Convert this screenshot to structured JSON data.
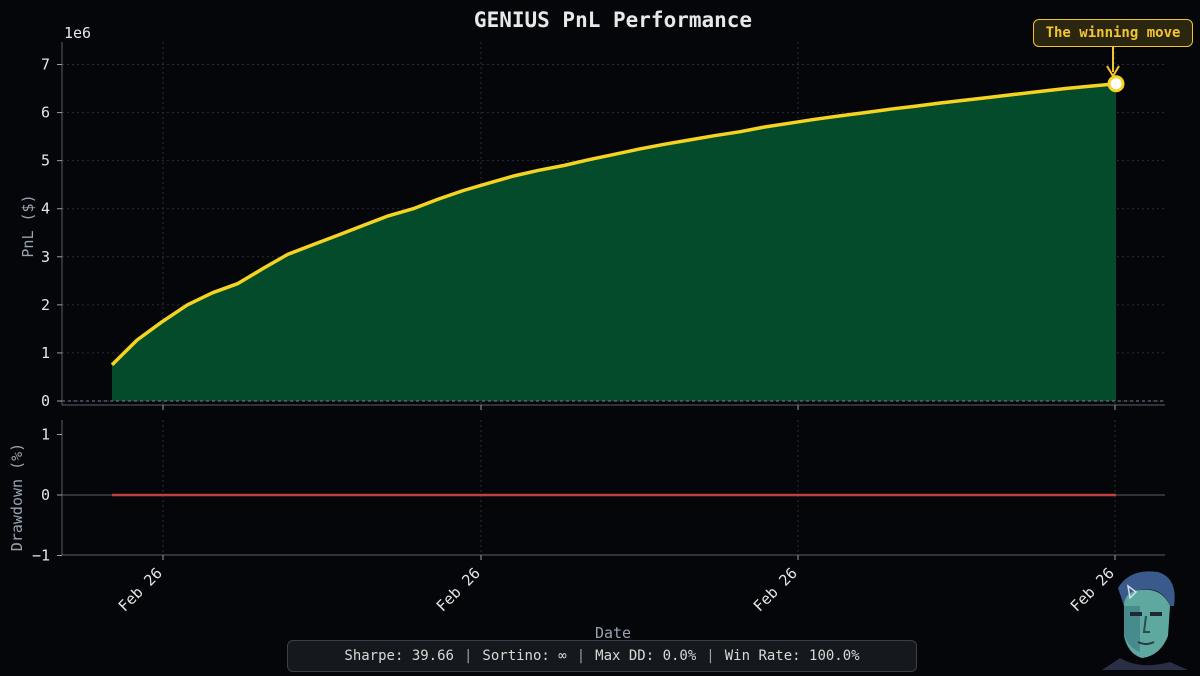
{
  "chart_data": [
    {
      "type": "area",
      "title": "GENIUS PnL Performance",
      "ylabel": "PnL ($)",
      "y_scale_label": "1e6",
      "ylim": [
        -0.08,
        7.4
      ],
      "yticks": [
        "0",
        "1",
        "2",
        "3",
        "4",
        "5",
        "6",
        "7"
      ],
      "x": [
        0,
        1,
        2,
        3,
        4,
        5,
        6,
        7,
        8,
        9,
        10,
        11,
        12,
        13,
        14,
        15,
        16,
        17,
        18,
        19,
        20,
        21,
        22,
        23,
        24,
        25,
        26,
        27,
        28,
        29,
        30,
        31,
        32,
        33,
        34,
        35,
        36,
        37,
        38,
        39,
        40
      ],
      "series": [
        {
          "values": [
            0.75,
            1.27,
            1.65,
            2.0,
            2.25,
            2.44,
            2.75,
            3.05,
            3.25,
            3.45,
            3.65,
            3.85,
            4.0,
            4.2,
            4.38,
            4.53,
            4.68,
            4.8,
            4.9,
            5.02,
            5.13,
            5.24,
            5.34,
            5.43,
            5.52,
            5.6,
            5.7,
            5.78,
            5.86,
            5.93,
            6.0,
            6.07,
            6.13,
            6.2,
            6.26,
            6.32,
            6.38,
            6.44,
            6.5,
            6.55,
            6.6
          ],
          "color": "#f5d320",
          "fill": "#034f2c"
        }
      ],
      "grid": true,
      "annotation": {
        "text": "The winning move",
        "point_index": 40,
        "color": "#f4c531"
      }
    },
    {
      "type": "line",
      "ylabel": "Drawdown (%)",
      "xlabel": "Date",
      "ylim": [
        -1,
        1
      ],
      "yticks": [
        "1",
        "0",
        "−1"
      ],
      "xticks": [
        "Feb 26",
        "Feb 26",
        "Feb 26",
        "Feb 26"
      ],
      "series": [
        {
          "values": [
            0,
            0
          ],
          "color": "#c0403c"
        }
      ],
      "grid": true
    }
  ],
  "stats": {
    "sharpe": "Sharpe: 39.66",
    "sortino": "Sortino: ∞",
    "max_dd": "Max DD: 0.0%",
    "win_rate": "Win Rate: 100.0%",
    "separator": "|"
  },
  "colors": {
    "background": "#05060a",
    "accent": "#f5d320",
    "area_fill": "#034f2c",
    "drawdown": "#c0403c"
  },
  "avatar_icon": "robot-face-icon"
}
